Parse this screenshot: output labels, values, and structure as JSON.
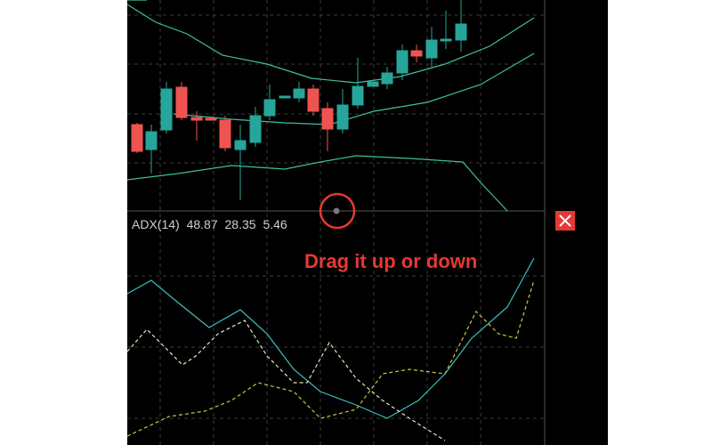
{
  "indicator": {
    "name": "ADX(14)",
    "values": [
      48.87,
      28.35,
      5.46
    ]
  },
  "annotation": "Drag it up or down"
}
